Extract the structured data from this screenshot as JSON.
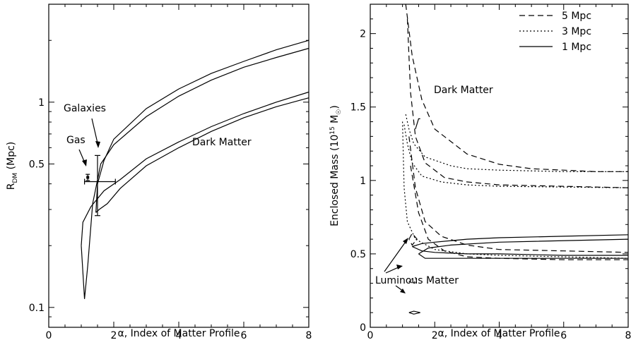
{
  "chart_data": [
    {
      "type": "line",
      "panel": "left",
      "xlabel": "α, Index of Matter Profile",
      "ylabel_main": "R",
      "ylabel_sub": "DM",
      "ylabel_unit": " (Mpc)",
      "xlim": [
        0,
        8
      ],
      "ylim": [
        0.08,
        3.0
      ],
      "yscale": "log",
      "x_ticks": [
        "0",
        "2",
        "4",
        "6",
        "8"
      ],
      "y_ticks": [
        "0.1",
        "0.5",
        "1"
      ],
      "annotations": {
        "galaxies": "Galaxies",
        "gas": "Gas",
        "dm": "Dark Matter"
      },
      "contours": [
        {
          "name": "",
          "points": [
            [
              1.0,
              0.2
            ],
            [
              1.1,
              0.11
            ],
            [
              1.2,
              0.16
            ],
            [
              1.35,
              0.32
            ],
            [
              1.6,
              0.5
            ],
            [
              2,
              0.62
            ],
            [
              3,
              0.85
            ],
            [
              4,
              1.07
            ],
            [
              5,
              1.28
            ],
            [
              6,
              1.48
            ],
            [
              7,
              1.65
            ],
            [
              8,
              1.83
            ]
          ]
        },
        {
          "name": "",
          "points": [
            [
              1.45,
              0.29
            ],
            [
              1.5,
              0.4
            ],
            [
              1.7,
              0.52
            ],
            [
              2,
              0.66
            ],
            [
              3,
              0.93
            ],
            [
              4,
              1.16
            ],
            [
              5,
              1.38
            ],
            [
              6,
              1.58
            ],
            [
              7,
              1.8
            ],
            [
              8,
              2.0
            ]
          ]
        },
        {
          "name": "",
          "points": [
            [
              1.45,
              0.29
            ],
            [
              1.55,
              0.3
            ],
            [
              1.8,
              0.32
            ],
            [
              2.2,
              0.38
            ],
            [
              3,
              0.49
            ],
            [
              4,
              0.6
            ],
            [
              5,
              0.72
            ],
            [
              6,
              0.84
            ],
            [
              7,
              0.95
            ],
            [
              8,
              1.05
            ]
          ]
        },
        {
          "name": "",
          "points": [
            [
              1.0,
              0.2
            ],
            [
              1.05,
              0.26
            ],
            [
              1.3,
              0.31
            ],
            [
              1.7,
              0.37
            ],
            [
              2.2,
              0.42
            ],
            [
              3,
              0.53
            ],
            [
              4,
              0.64
            ],
            [
              5,
              0.76
            ],
            [
              6,
              0.88
            ],
            [
              7,
              1.0
            ],
            [
              8,
              1.12
            ]
          ]
        }
      ],
      "galaxies_point": {
        "x": 1.5,
        "y": 0.41,
        "xerr": [
          1.1,
          2.05
        ],
        "yerr": [
          0.28,
          0.55
        ]
      },
      "gas_point": {
        "x": 1.2,
        "y": 0.43,
        "yerr": [
          0.415,
          0.445
        ]
      }
    },
    {
      "type": "line",
      "panel": "right",
      "xlabel": "α, Index of Matter Profile",
      "ylabel": "Enclosed Mass (10",
      "ylabel_sup": "15",
      "ylabel_unit": " M",
      "xlim": [
        0,
        8
      ],
      "ylim": [
        0,
        2.2
      ],
      "x_ticks": [
        "0",
        "2",
        "4",
        "6",
        "8"
      ],
      "y_ticks": [
        "0",
        "0.5",
        "1",
        "1.5",
        "2"
      ],
      "legend": [
        {
          "label": "5 Mpc",
          "dash": "8,5"
        },
        {
          "label": "3 Mpc",
          "dash": "2,3"
        },
        {
          "label": "1 Mpc",
          "dash": ""
        }
      ],
      "legend_position": "top-right",
      "annotations": {
        "dm": "Dark Matter",
        "lum": "Luminous Matter"
      },
      "series": [
        {
          "name": "5 Mpc",
          "style": "8,5",
          "points": [
            [
              1.1,
              2.2
            ],
            [
              1.3,
              1.85
            ],
            [
              1.6,
              1.55
            ],
            [
              2,
              1.35
            ],
            [
              3,
              1.18
            ],
            [
              4,
              1.11
            ],
            [
              5,
              1.08
            ],
            [
              6,
              1.07
            ],
            [
              7,
              1.06
            ],
            [
              8,
              1.06
            ]
          ]
        },
        {
          "name": "5 Mpc",
          "style": "8,5",
          "points": [
            [
              1.15,
              2.1
            ],
            [
              1.25,
              1.6
            ],
            [
              1.4,
              1.3
            ],
            [
              1.7,
              1.12
            ],
            [
              2.3,
              1.02
            ],
            [
              3,
              0.99
            ],
            [
              4,
              0.97
            ],
            [
              6,
              0.96
            ],
            [
              8,
              0.95
            ]
          ]
        },
        {
          "name": "5 Mpc",
          "style": "8,5",
          "points": [
            [
              1.2,
              1.3
            ],
            [
              1.4,
              0.95
            ],
            [
              1.7,
              0.72
            ],
            [
              2.2,
              0.62
            ],
            [
              3,
              0.56
            ],
            [
              4,
              0.53
            ],
            [
              6,
              0.52
            ],
            [
              8,
              0.51
            ]
          ]
        },
        {
          "name": "5 Mpc",
          "style": "8,5",
          "points": [
            [
              1.25,
              1.1
            ],
            [
              1.5,
              0.78
            ],
            [
              1.8,
              0.6
            ],
            [
              2.3,
              0.52
            ],
            [
              3,
              0.48
            ],
            [
              4,
              0.47
            ],
            [
              6,
              0.46
            ],
            [
              8,
              0.46
            ]
          ]
        },
        {
          "name": "3 Mpc",
          "style": "2,3",
          "points": [
            [
              1.1,
              1.45
            ],
            [
              1.2,
              1.35
            ],
            [
              1.35,
              1.25
            ],
            [
              1.7,
              1.16
            ],
            [
              2.5,
              1.1
            ],
            [
              3,
              1.08
            ],
            [
              4,
              1.07
            ],
            [
              6,
              1.06
            ],
            [
              8,
              1.06
            ]
          ]
        },
        {
          "name": "3 Mpc",
          "style": "2,3",
          "points": [
            [
              1.05,
              1.38
            ],
            [
              1.15,
              1.25
            ],
            [
              1.3,
              1.12
            ],
            [
              1.6,
              1.03
            ],
            [
              2.2,
              0.99
            ],
            [
              3,
              0.97
            ],
            [
              4,
              0.96
            ],
            [
              8,
              0.95
            ]
          ]
        },
        {
          "name": "3 Mpc",
          "style": "2,3",
          "points": [
            [
              1.0,
              1.4
            ],
            [
              1.05,
              0.95
            ],
            [
              1.15,
              0.72
            ],
            [
              1.4,
              0.6
            ],
            [
              2,
              0.53
            ],
            [
              3,
              0.5
            ],
            [
              4,
              0.49
            ],
            [
              6,
              0.48
            ],
            [
              8,
              0.47
            ]
          ]
        },
        {
          "name": "1 Mpc",
          "style": "",
          "points": [
            [
              1.4,
              1.35
            ],
            [
              1.5,
              1.42
            ],
            [
              1.55,
              1.42
            ]
          ]
        },
        {
          "name": "1 Mpc",
          "style": "",
          "points": [
            [
              1.3,
              0.55
            ],
            [
              1.6,
              0.57
            ],
            [
              2,
              0.58
            ],
            [
              3,
              0.6
            ],
            [
              4,
              0.61
            ],
            [
              6,
              0.62
            ],
            [
              8,
              0.63
            ]
          ]
        },
        {
          "name": "1 Mpc",
          "style": "",
          "points": [
            [
              1.3,
              0.55
            ],
            [
              1.6,
              0.52
            ],
            [
              2,
              0.51
            ],
            [
              3,
              0.5
            ],
            [
              4,
              0.5
            ],
            [
              6,
              0.49
            ],
            [
              8,
              0.49
            ]
          ]
        },
        {
          "name": "1 Mpc",
          "style": "",
          "points": [
            [
              1.5,
              0.5
            ],
            [
              1.7,
              0.47
            ],
            [
              2,
              0.47
            ],
            [
              3,
              0.47
            ],
            [
              4,
              0.47
            ],
            [
              6,
              0.47
            ],
            [
              8,
              0.47
            ]
          ]
        },
        {
          "name": "1 Mpc",
          "style": "",
          "points": [
            [
              1.5,
              0.5
            ],
            [
              1.8,
              0.54
            ],
            [
              2.5,
              0.56
            ],
            [
              4,
              0.58
            ],
            [
              8,
              0.6
            ]
          ]
        }
      ],
      "lum_shapes": [
        {
          "style": "8,5",
          "points": [
            [
              1.2,
              0.6
            ],
            [
              1.3,
              0.64
            ],
            [
              1.45,
              0.6
            ],
            [
              1.3,
              0.56
            ],
            [
              1.2,
              0.6
            ]
          ]
        },
        {
          "style": "2,3",
          "points": [
            [
              1.2,
              0.31
            ],
            [
              1.3,
              0.33
            ],
            [
              1.45,
              0.34
            ],
            [
              1.35,
              0.3
            ],
            [
              1.2,
              0.31
            ]
          ]
        },
        {
          "style": "",
          "points": [
            [
              1.2,
              0.1
            ],
            [
              1.35,
              0.11
            ],
            [
              1.55,
              0.1
            ],
            [
              1.35,
              0.09
            ],
            [
              1.2,
              0.1
            ]
          ]
        }
      ]
    }
  ]
}
